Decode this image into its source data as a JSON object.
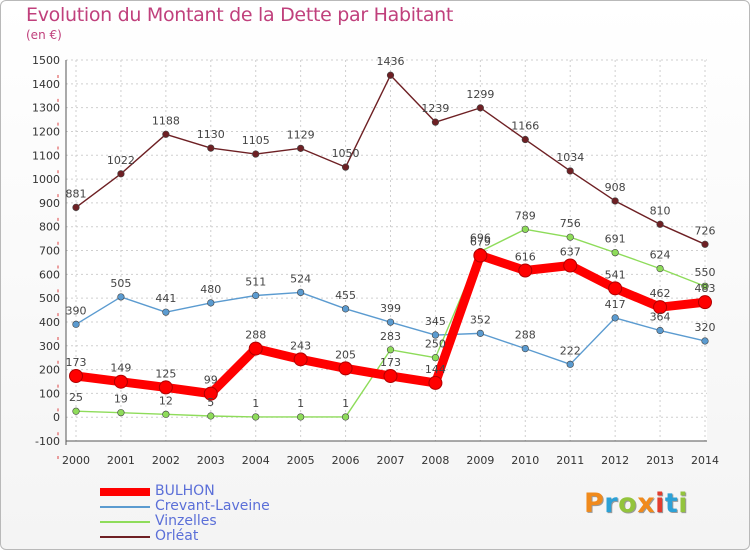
{
  "title": "Evolution du Montant de la Dette par Habitant",
  "unit_note": "(en €)",
  "brand": "Proxiti",
  "brand_colors": [
    "#f08a1c",
    "#2ca1d6",
    "#93c43d",
    "#f08a1c",
    "#e23c2e",
    "#2ca1d6",
    "#93c43d"
  ],
  "chart_data": {
    "type": "line",
    "title": "Evolution du Montant de la Dette par Habitant",
    "ylabel": "(en €)",
    "xlabel": "",
    "x": [
      "2000",
      "2001",
      "2002",
      "2003",
      "2004",
      "2005",
      "2006",
      "2007",
      "2008",
      "2009",
      "2010",
      "2011",
      "2012",
      "2013",
      "2014"
    ],
    "ylim": [
      -100,
      1500
    ],
    "yticks": [
      -100,
      0,
      100,
      200,
      300,
      400,
      500,
      600,
      700,
      800,
      900,
      1000,
      1100,
      1200,
      1300,
      1400,
      1500
    ],
    "grid": true,
    "legend": "bottom-left",
    "series": [
      {
        "name": "Orléat",
        "color": "#6e2024",
        "values": [
          881,
          1022,
          1188,
          1130,
          1105,
          1129,
          1050,
          1436,
          1239,
          1299,
          1166,
          1034,
          908,
          810,
          726
        ]
      },
      {
        "name": "Crevant-Laveine",
        "color": "#5b9bd0",
        "values": [
          390,
          505,
          441,
          480,
          511,
          524,
          455,
          399,
          345,
          352,
          288,
          222,
          417,
          364,
          320
        ]
      },
      {
        "name": "Vinzelles",
        "color": "#8edc5a",
        "values": [
          25,
          19,
          12,
          5,
          1,
          1,
          1,
          283,
          250,
          696,
          789,
          756,
          691,
          624,
          550
        ]
      },
      {
        "name": "BULHON",
        "color": "#ff0000",
        "values": [
          173,
          149,
          125,
          99,
          288,
          243,
          205,
          173,
          144,
          679,
          616,
          637,
          541,
          462,
          483
        ]
      }
    ]
  },
  "legend_items": [
    {
      "name": "BULHON",
      "color": "#ff0000",
      "thick": true
    },
    {
      "name": "Crevant-Laveine",
      "color": "#5b9bd0",
      "thick": false
    },
    {
      "name": "Vinzelles",
      "color": "#8edc5a",
      "thick": false
    },
    {
      "name": "Orléat",
      "color": "#6e2024",
      "thick": false
    }
  ]
}
